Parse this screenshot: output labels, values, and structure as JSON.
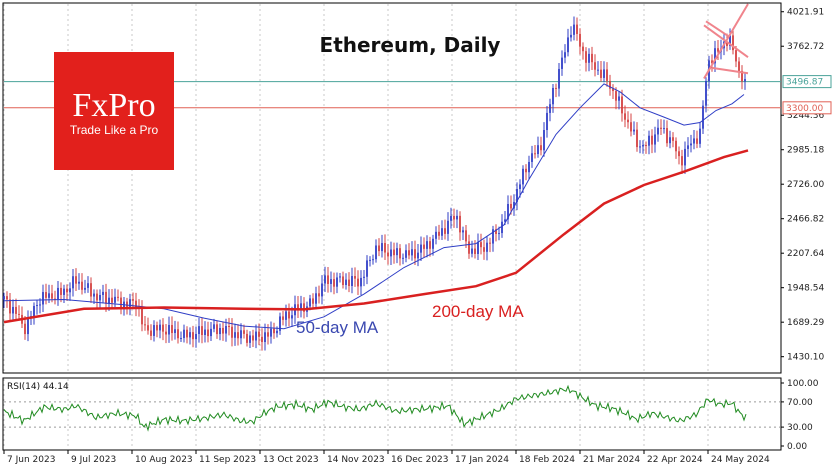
{
  "chart_data": {
    "type": "candlestick",
    "title": "Ethereum, Daily",
    "brand": {
      "name": "FxPro",
      "tagline": "Trade Like a Pro",
      "color": "#e2201c"
    },
    "price_axis": {
      "ticks": [
        1430.1,
        1689.29,
        1948.54,
        2207.64,
        2466.82,
        2726.0,
        2985.18,
        3244.36,
        3762.72,
        4021.91
      ],
      "tick_labels": [
        "1430.10",
        "1689.29",
        "1948.54",
        "2207.64",
        "2466.82",
        "2726.00",
        "2985.18",
        "3244.36",
        "3762.72",
        "4021.91"
      ],
      "range": [
        1315,
        4080
      ]
    },
    "date_axis": {
      "labels": [
        "7 Jun 2023",
        "9 Jul 2023",
        "10 Aug 2023",
        "11 Sep 2023",
        "13 Oct 2023",
        "14 Nov 2023",
        "16 Dec 2023",
        "17 Jan 2024",
        "18 Feb 2024",
        "21 Mar 2024",
        "22 Apr 2024",
        "24 May 2024"
      ],
      "label_days": [
        0,
        32,
        64,
        96,
        128,
        160,
        192,
        224,
        256,
        288,
        320,
        352
      ],
      "range_days": [
        0,
        372
      ]
    },
    "levels": [
      {
        "name": "horizontal-line-3496",
        "value": 3496.87,
        "label": "3496.87",
        "color": "#4aa39a"
      },
      {
        "name": "horizontal-line-3300",
        "value": 3300.0,
        "label": "3300.00",
        "color": "#e06055"
      }
    ],
    "annotations": [
      {
        "text": "50-day MA",
        "color": "#3a48b0"
      },
      {
        "text": "200-day MA",
        "color": "#d92020"
      }
    ],
    "series": [
      {
        "name": "Price (close)",
        "color_up": "#2f3ec6",
        "color_down": "#d44040",
        "points": [
          [
            0,
            1860
          ],
          [
            6,
            1760
          ],
          [
            10,
            1640
          ],
          [
            18,
            1870
          ],
          [
            28,
            1900
          ],
          [
            36,
            2000
          ],
          [
            46,
            1885
          ],
          [
            54,
            1860
          ],
          [
            62,
            1820
          ],
          [
            66,
            1850
          ],
          [
            70,
            1630
          ],
          [
            80,
            1640
          ],
          [
            90,
            1585
          ],
          [
            100,
            1620
          ],
          [
            110,
            1640
          ],
          [
            116,
            1600
          ],
          [
            124,
            1570
          ],
          [
            134,
            1600
          ],
          [
            138,
            1700
          ],
          [
            146,
            1790
          ],
          [
            154,
            1830
          ],
          [
            160,
            2000
          ],
          [
            170,
            2000
          ],
          [
            178,
            1995
          ],
          [
            186,
            2250
          ],
          [
            196,
            2200
          ],
          [
            204,
            2200
          ],
          [
            210,
            2250
          ],
          [
            218,
            2360
          ],
          [
            226,
            2500
          ],
          [
            232,
            2230
          ],
          [
            240,
            2250
          ],
          [
            248,
            2400
          ],
          [
            256,
            2650
          ],
          [
            262,
            2900
          ],
          [
            268,
            3000
          ],
          [
            274,
            3400
          ],
          [
            280,
            3700
          ],
          [
            284,
            3930
          ],
          [
            290,
            3700
          ],
          [
            296,
            3600
          ],
          [
            302,
            3500
          ],
          [
            310,
            3250
          ],
          [
            316,
            3050
          ],
          [
            320,
            3000
          ],
          [
            328,
            3150
          ],
          [
            334,
            3050
          ],
          [
            338,
            2900
          ],
          [
            344,
            3050
          ],
          [
            348,
            3100
          ],
          [
            352,
            3650
          ],
          [
            356,
            3700
          ],
          [
            360,
            3800
          ],
          [
            364,
            3780
          ],
          [
            368,
            3550
          ],
          [
            371,
            3440
          ]
        ]
      },
      {
        "name": "50-day MA",
        "color": "#2f3ec6",
        "points": [
          [
            0,
            1850
          ],
          [
            30,
            1860
          ],
          [
            60,
            1820
          ],
          [
            80,
            1790
          ],
          [
            100,
            1720
          ],
          [
            120,
            1660
          ],
          [
            140,
            1640
          ],
          [
            160,
            1730
          ],
          [
            180,
            1900
          ],
          [
            200,
            2100
          ],
          [
            220,
            2250
          ],
          [
            236,
            2280
          ],
          [
            250,
            2420
          ],
          [
            262,
            2750
          ],
          [
            276,
            3100
          ],
          [
            288,
            3300
          ],
          [
            300,
            3480
          ],
          [
            308,
            3420
          ],
          [
            318,
            3300
          ],
          [
            330,
            3230
          ],
          [
            340,
            3170
          ],
          [
            348,
            3190
          ],
          [
            356,
            3280
          ],
          [
            364,
            3330
          ],
          [
            370,
            3400
          ]
        ]
      },
      {
        "name": "200-day MA",
        "color": "#d92020",
        "points": [
          [
            0,
            1690
          ],
          [
            40,
            1790
          ],
          [
            80,
            1800
          ],
          [
            120,
            1790
          ],
          [
            150,
            1785
          ],
          [
            180,
            1830
          ],
          [
            210,
            1900
          ],
          [
            236,
            1960
          ],
          [
            256,
            2060
          ],
          [
            280,
            2350
          ],
          [
            300,
            2580
          ],
          [
            320,
            2720
          ],
          [
            340,
            2820
          ],
          [
            360,
            2930
          ],
          [
            372,
            2980
          ]
        ]
      },
      {
        "name": "Trend lines",
        "color": "#f0848c",
        "lines": [
          [
            [
              350,
              3520
            ],
            [
              372,
              4080
            ]
          ],
          [
            [
              350,
              3920
            ],
            [
              372,
              3680
            ]
          ],
          [
            [
              354,
              3600
            ],
            [
              372,
              3560
            ]
          ],
          [
            [
              351,
              3950
            ],
            [
              362,
              3840
            ]
          ]
        ]
      }
    ],
    "rsi": {
      "label": "RSI(14) 44.14",
      "range": [
        0,
        100
      ],
      "ticks": [
        100.0,
        70.0,
        30.0,
        0.0
      ],
      "tick_labels": [
        "100.00",
        "70.00",
        "30.00",
        "0.00"
      ],
      "color": "#1f8a1f",
      "points": [
        [
          0,
          55
        ],
        [
          10,
          40
        ],
        [
          20,
          62
        ],
        [
          30,
          58
        ],
        [
          36,
          64
        ],
        [
          46,
          45
        ],
        [
          56,
          52
        ],
        [
          66,
          48
        ],
        [
          70,
          30
        ],
        [
          80,
          42
        ],
        [
          90,
          40
        ],
        [
          100,
          44
        ],
        [
          110,
          50
        ],
        [
          118,
          40
        ],
        [
          124,
          38
        ],
        [
          130,
          52
        ],
        [
          136,
          62
        ],
        [
          146,
          66
        ],
        [
          154,
          58
        ],
        [
          162,
          70
        ],
        [
          170,
          62
        ],
        [
          178,
          58
        ],
        [
          186,
          68
        ],
        [
          196,
          55
        ],
        [
          206,
          58
        ],
        [
          214,
          60
        ],
        [
          222,
          64
        ],
        [
          230,
          35
        ],
        [
          238,
          45
        ],
        [
          248,
          58
        ],
        [
          256,
          75
        ],
        [
          264,
          80
        ],
        [
          272,
          84
        ],
        [
          280,
          90
        ],
        [
          284,
          88
        ],
        [
          290,
          75
        ],
        [
          296,
          64
        ],
        [
          304,
          60
        ],
        [
          312,
          50
        ],
        [
          316,
          42
        ],
        [
          324,
          52
        ],
        [
          332,
          45
        ],
        [
          338,
          40
        ],
        [
          346,
          50
        ],
        [
          352,
          74
        ],
        [
          358,
          66
        ],
        [
          364,
          68
        ],
        [
          368,
          52
        ],
        [
          371,
          44
        ]
      ]
    }
  }
}
